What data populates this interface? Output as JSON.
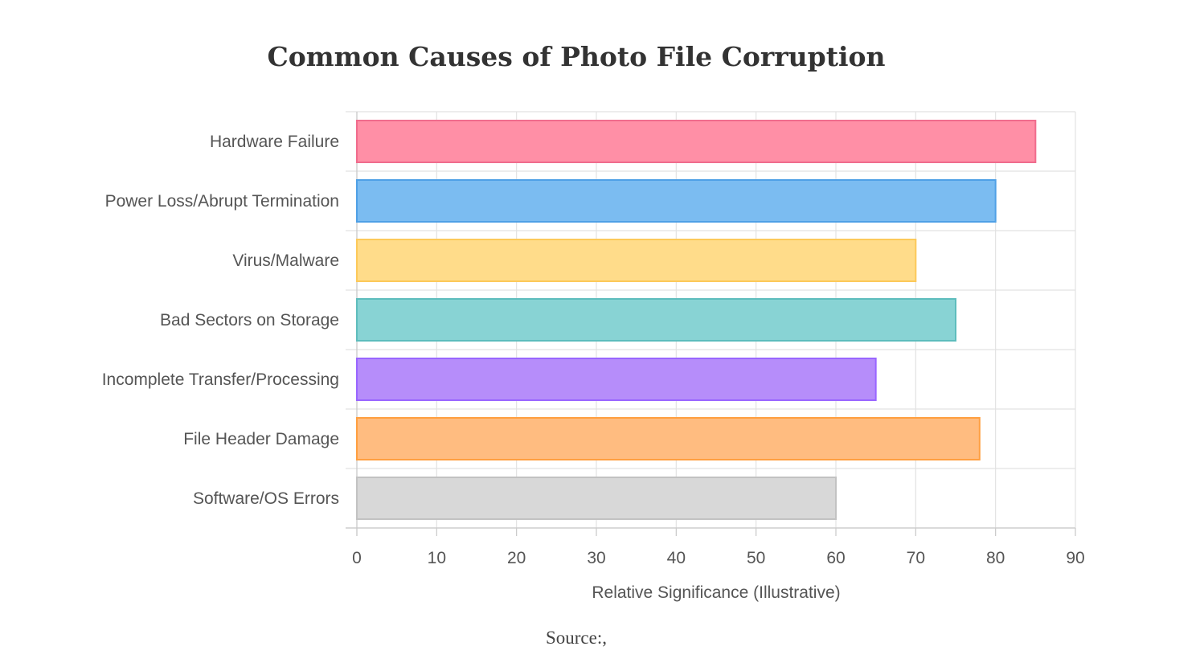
{
  "chart_data": {
    "type": "bar",
    "orientation": "horizontal",
    "title": "Common Causes of Photo File Corruption",
    "xlabel": "Relative Significance (Illustrative)",
    "ylabel": "",
    "xlim": [
      0,
      90
    ],
    "xticks": [
      0,
      10,
      20,
      30,
      40,
      50,
      60,
      70,
      80,
      90
    ],
    "grid": true,
    "legend": "none",
    "categories": [
      "Hardware Failure",
      "Power Loss/Abrupt Termination",
      "Virus/Malware",
      "Bad Sectors on Storage",
      "Incomplete Transfer/Processing",
      "File Header Damage",
      "Software/OS Errors"
    ],
    "values": [
      85,
      80,
      70,
      75,
      65,
      78,
      60
    ],
    "colors": {
      "fill": [
        "#ff8fa6",
        "#7bbcf1",
        "#ffdc8a",
        "#88d3d4",
        "#b68dfa",
        "#ffbc80",
        "#d8d8d8"
      ],
      "stroke": [
        "#f06c8d",
        "#4fa0e6",
        "#fcc95a",
        "#5ebdbd",
        "#9966ff",
        "#ff9f40",
        "#c2c2c2"
      ]
    }
  },
  "source": "Source:,"
}
